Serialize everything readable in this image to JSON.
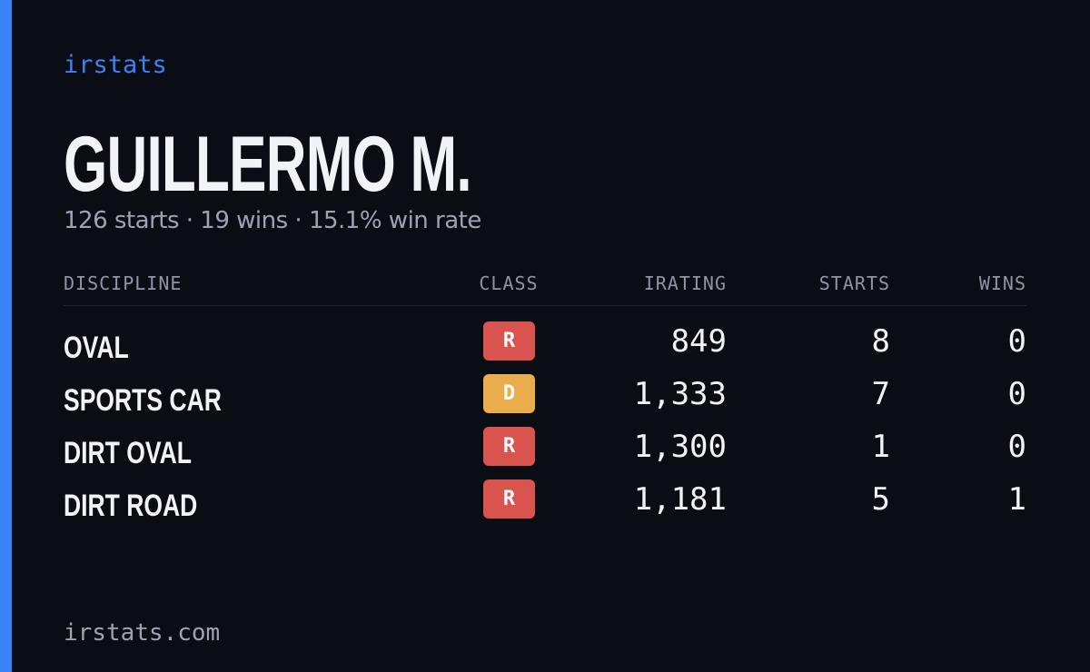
{
  "brand": "irstats",
  "name": "GUILLERMO M.",
  "summary": "126 starts · 19 wins · 15.1% win rate",
  "table": {
    "headers": [
      "DISCIPLINE",
      "CLASS",
      "IRATING",
      "STARTS",
      "WINS"
    ],
    "rows": [
      [
        "OVAL",
        "R",
        "849",
        "8",
        "0"
      ],
      [
        "SPORTS CAR",
        "D",
        "1,333",
        "7",
        "0"
      ],
      [
        "DIRT OVAL",
        "R",
        "1,300",
        "1",
        "0"
      ],
      [
        "DIRT ROAD",
        "R",
        "1,181",
        "5",
        "1"
      ]
    ]
  },
  "class_colors": {
    "R": "#d9534f",
    "D": "#e9ad4b"
  },
  "footer": "irstats.com"
}
